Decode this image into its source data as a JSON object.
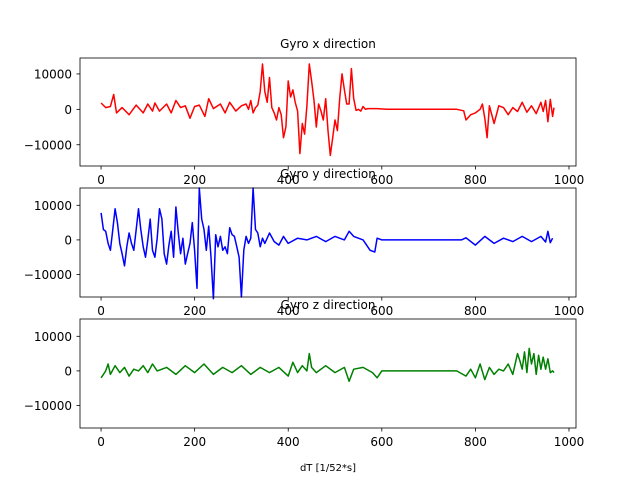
{
  "figure": {
    "xlabel": "dT [1/52*s]"
  },
  "chart_data": [
    {
      "type": "line",
      "title": "Gyro x direction",
      "xlabel": "",
      "ylabel": "",
      "xlim": [
        -45,
        1015
      ],
      "ylim": [
        -16000,
        14500
      ],
      "xticks": [
        0,
        200,
        400,
        600,
        800,
        1000
      ],
      "yticks": [
        -10000,
        0,
        10000
      ],
      "grid": false,
      "series": [
        {
          "color": "#ff0000",
          "x": [
            0,
            10,
            20,
            27,
            33,
            45,
            60,
            75,
            90,
            100,
            110,
            115,
            125,
            140,
            150,
            160,
            170,
            180,
            190,
            200,
            210,
            222,
            230,
            240,
            255,
            265,
            275,
            288,
            300,
            310,
            315,
            320,
            325,
            330,
            335,
            340,
            345,
            350,
            355,
            360,
            365,
            370,
            375,
            380,
            385,
            390,
            395,
            400,
            405,
            410,
            415,
            420,
            425,
            430,
            435,
            440,
            445,
            450,
            455,
            460,
            465,
            470,
            475,
            480,
            485,
            490,
            495,
            500,
            505,
            510,
            515,
            520,
            525,
            530,
            535,
            540,
            545,
            550,
            555,
            560,
            565,
            570,
            590,
            610,
            640,
            680,
            720,
            760,
            775,
            780,
            790,
            800,
            810,
            815,
            820,
            825,
            830,
            840,
            850,
            860,
            870,
            880,
            890,
            900,
            910,
            920,
            930,
            940,
            945,
            950,
            955,
            960,
            965,
            968
          ],
          "y": [
            1800,
            500,
            800,
            4200,
            -1000,
            500,
            -1500,
            1200,
            -1000,
            1500,
            -500,
            1800,
            -500,
            1500,
            -1000,
            2500,
            500,
            1000,
            -2500,
            800,
            1200,
            -2000,
            3000,
            200,
            1500,
            -1000,
            2000,
            -500,
            1000,
            1500,
            0,
            2500,
            -1000,
            500,
            1200,
            5000,
            12800,
            5000,
            2000,
            9000,
            500,
            -1000,
            -3000,
            500,
            -1500,
            -8000,
            -5000,
            8000,
            3500,
            5500,
            2000,
            -500,
            -12500,
            -4000,
            -7000,
            1000,
            12800,
            8000,
            2500,
            -5000,
            1500,
            -500,
            -3000,
            3000,
            -6000,
            -13000,
            -8000,
            -3000,
            -6000,
            3000,
            10000,
            5500,
            1500,
            1500,
            11500,
            3000,
            -300,
            0,
            -500,
            800,
            0,
            200,
            200,
            0,
            0,
            0,
            0,
            0,
            -400,
            -3000,
            -1500,
            -1000,
            0,
            1500,
            -2500,
            -8000,
            1000,
            -4000,
            1000,
            500,
            -1500,
            500,
            -600,
            2000,
            -800,
            1000,
            -1200,
            2000,
            -600,
            2500,
            -3500,
            2800,
            -2000,
            500
          ]
        }
      ]
    },
    {
      "type": "line",
      "title": "Gyro y direction",
      "xlabel": "",
      "ylabel": "",
      "xlim": [
        -45,
        1015
      ],
      "ylim": [
        -16500,
        15000
      ],
      "xticks": [
        0,
        200,
        400,
        600,
        800,
        1000
      ],
      "yticks": [
        -10000,
        0,
        10000
      ],
      "grid": false,
      "series": [
        {
          "color": "#0000ff",
          "x": [
            0,
            5,
            10,
            15,
            20,
            25,
            30,
            35,
            40,
            45,
            50,
            55,
            60,
            65,
            70,
            75,
            80,
            85,
            90,
            95,
            100,
            105,
            110,
            115,
            120,
            125,
            130,
            135,
            140,
            145,
            150,
            155,
            160,
            165,
            170,
            175,
            180,
            185,
            190,
            195,
            200,
            205,
            210,
            215,
            220,
            225,
            230,
            235,
            240,
            245,
            250,
            255,
            260,
            265,
            270,
            275,
            280,
            285,
            290,
            295,
            300,
            305,
            310,
            315,
            320,
            325,
            330,
            335,
            340,
            345,
            350,
            360,
            370,
            380,
            390,
            400,
            420,
            440,
            460,
            480,
            500,
            520,
            530,
            540,
            560,
            575,
            585,
            590,
            600,
            620,
            660,
            700,
            740,
            770,
            780,
            800,
            820,
            840,
            860,
            880,
            900,
            920,
            940,
            950,
            955,
            960,
            965
          ],
          "y": [
            7800,
            3000,
            2500,
            -1000,
            -3000,
            3000,
            9000,
            5000,
            -1000,
            -4000,
            -7500,
            -2000,
            2000,
            -1000,
            -3000,
            3000,
            9000,
            3000,
            -2000,
            -5000,
            0,
            6000,
            -3000,
            -5000,
            500,
            9000,
            6000,
            -4000,
            -7000,
            -1500,
            2500,
            -5000,
            9500,
            2000,
            -4000,
            500,
            -7000,
            -4000,
            -1000,
            5000,
            -3000,
            -14000,
            15000,
            6000,
            3000,
            -3000,
            4000,
            -5000,
            -17000,
            1500,
            -2000,
            1000,
            -3000,
            -2000,
            -4000,
            3500,
            1500,
            1000,
            -2000,
            -5000,
            -16500,
            -3000,
            1000,
            -1000,
            500,
            15000,
            3000,
            2000,
            -2000,
            500,
            -1000,
            2000,
            -500,
            -1500,
            1000,
            -1000,
            500,
            0,
            1000,
            -500,
            1000,
            0,
            2500,
            1000,
            0,
            -3000,
            -3500,
            500,
            0,
            0,
            0,
            0,
            0,
            0,
            600,
            -1500,
            1000,
            -1000,
            500,
            -500,
            1000,
            -500,
            1000,
            -600,
            2500,
            -800,
            500
          ]
        }
      ]
    },
    {
      "type": "line",
      "title": "Gyro z direction",
      "xlabel": "dT [1/52*s]",
      "ylabel": "",
      "xlim": [
        -45,
        1015
      ],
      "ylim": [
        -16500,
        15000
      ],
      "xticks": [
        0,
        200,
        400,
        600,
        800,
        1000
      ],
      "yticks": [
        -10000,
        0,
        10000
      ],
      "grid": false,
      "series": [
        {
          "color": "#008000",
          "x": [
            0,
            5,
            10,
            15,
            20,
            30,
            40,
            50,
            60,
            70,
            80,
            90,
            100,
            110,
            120,
            140,
            160,
            180,
            200,
            220,
            240,
            260,
            280,
            300,
            320,
            340,
            360,
            380,
            400,
            410,
            420,
            430,
            440,
            445,
            450,
            460,
            480,
            500,
            520,
            530,
            540,
            560,
            580,
            590,
            600,
            650,
            700,
            760,
            780,
            790,
            800,
            810,
            820,
            830,
            840,
            850,
            860,
            870,
            880,
            890,
            895,
            900,
            905,
            910,
            915,
            920,
            925,
            930,
            935,
            940,
            945,
            950,
            955,
            960,
            965,
            968
          ],
          "y": [
            -2000,
            -1000,
            0,
            2000,
            -1000,
            1500,
            -500,
            1000,
            -1500,
            500,
            0,
            1500,
            -500,
            2000,
            0,
            1000,
            -1000,
            1500,
            -500,
            2000,
            -1000,
            1000,
            -500,
            1500,
            -1000,
            1000,
            -500,
            1000,
            -1500,
            2500,
            -500,
            1500,
            0,
            5000,
            1000,
            -500,
            1500,
            -500,
            1000,
            -3000,
            500,
            1000,
            -500,
            -2000,
            0,
            0,
            0,
            0,
            -1500,
            500,
            -2000,
            2000,
            -2500,
            1000,
            -1000,
            500,
            0,
            2000,
            -1000,
            5000,
            3000,
            500,
            5500,
            -500,
            6500,
            2000,
            5000,
            -1000,
            4500,
            500,
            4000,
            500,
            3500,
            -500,
            0,
            -500
          ]
        }
      ]
    }
  ]
}
